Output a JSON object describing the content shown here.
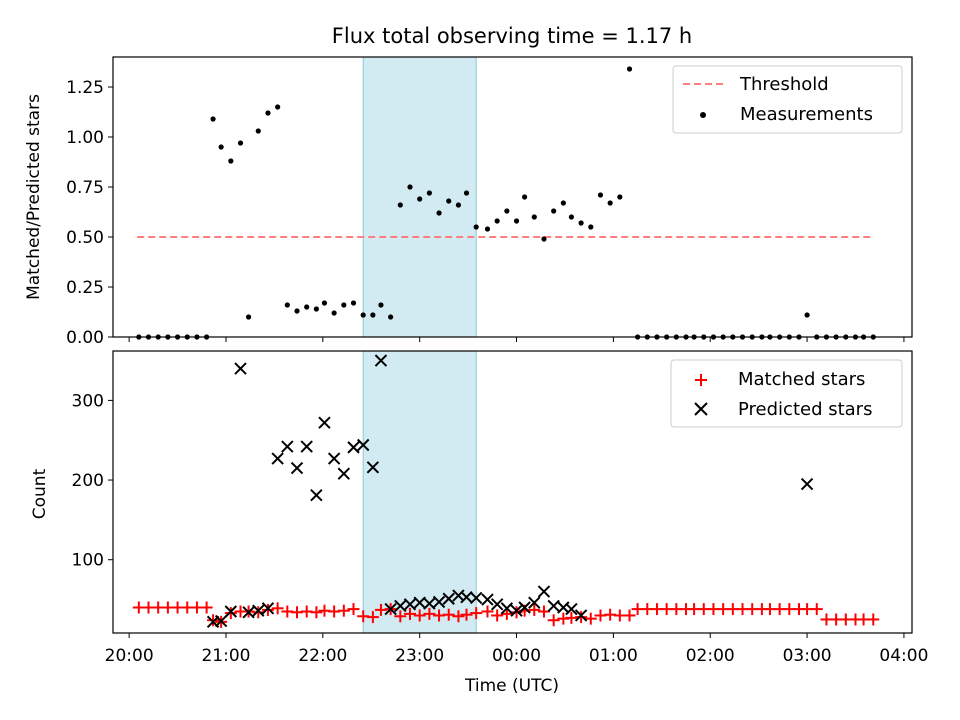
{
  "chart_data": [
    {
      "type": "scatter",
      "title": "Flux total observing time = 1.17 h",
      "xlabel": "",
      "ylabel": "Matched/Predicted stars",
      "xlim": [
        "19:50",
        "04:05"
      ],
      "ylim": [
        0,
        1.4
      ],
      "yticks": [
        "0.00",
        "0.25",
        "0.50",
        "0.75",
        "1.00",
        "1.25"
      ],
      "grid": false,
      "legend_position": "top-right",
      "shaded_interval": [
        "22:25",
        "23:35"
      ],
      "shade_color": "#add8e6",
      "series": [
        {
          "name": "Threshold",
          "style": "dashed-line",
          "color": "#ff7f7f",
          "x": [
            "20:05",
            "03:40"
          ],
          "y": [
            0.5,
            0.5
          ]
        },
        {
          "name": "Measurements",
          "style": "dot",
          "color": "#000000",
          "x": [
            "20:06",
            "20:12",
            "20:18",
            "20:24",
            "20:30",
            "20:36",
            "20:42",
            "20:48",
            "20:52",
            "20:57",
            "21:03",
            "21:09",
            "21:14",
            "21:20",
            "21:26",
            "21:32",
            "21:38",
            "21:44",
            "21:50",
            "21:56",
            "22:01",
            "22:07",
            "22:13",
            "22:19",
            "22:25",
            "22:31",
            "22:36",
            "22:42",
            "22:48",
            "22:54",
            "23:00",
            "23:06",
            "23:12",
            "23:18",
            "23:24",
            "23:29",
            "23:35",
            "23:42",
            "23:48",
            "23:54",
            "00:00",
            "00:05",
            "00:11",
            "00:17",
            "00:23",
            "00:29",
            "00:34",
            "00:40",
            "00:46",
            "00:52",
            "00:58",
            "01:04",
            "01:10",
            "01:15",
            "01:21",
            "01:27",
            "01:33",
            "01:39",
            "01:45",
            "01:50",
            "01:56",
            "02:02",
            "02:08",
            "02:14",
            "02:20",
            "02:26",
            "02:32",
            "02:37",
            "02:43",
            "02:49",
            "02:55",
            "03:00",
            "03:06",
            "03:12",
            "03:18",
            "03:24",
            "03:30",
            "03:35",
            "03:41"
          ],
          "y": [
            0,
            0,
            0,
            0,
            0,
            0,
            0,
            0,
            1.09,
            0.95,
            0.88,
            0.97,
            0.1,
            1.03,
            1.12,
            1.15,
            0.16,
            0.13,
            0.15,
            0.14,
            0.17,
            0.12,
            0.16,
            0.17,
            0.11,
            0.11,
            0.16,
            0.1,
            0.66,
            0.75,
            0.69,
            0.72,
            0.62,
            0.68,
            0.66,
            0.72,
            0.55,
            0.54,
            0.58,
            0.63,
            0.58,
            0.7,
            0.6,
            0.49,
            0.63,
            0.67,
            0.6,
            0.57,
            0.55,
            0.71,
            0.67,
            0.7,
            1.34,
            0,
            0,
            0,
            0,
            0,
            0,
            0,
            0,
            0,
            0,
            0,
            0,
            0,
            0,
            0,
            0,
            0,
            0,
            0.11,
            0,
            0,
            0,
            0,
            0,
            0,
            0
          ]
        }
      ]
    },
    {
      "type": "scatter",
      "title": "",
      "xlabel": "Time (UTC)",
      "ylabel": "Count",
      "xlim": [
        "19:50",
        "04:05"
      ],
      "xticks": [
        "20:00",
        "21:00",
        "22:00",
        "23:00",
        "00:00",
        "01:00",
        "02:00",
        "03:00",
        "04:00"
      ],
      "ylim": [
        8,
        362
      ],
      "yticks": [
        "100",
        "200",
        "300"
      ],
      "grid": false,
      "legend_position": "top-right",
      "shaded_interval": [
        "22:25",
        "23:35"
      ],
      "shade_color": "#add8e6",
      "series": [
        {
          "name": "Matched stars",
          "marker": "+",
          "color": "#ff0000",
          "x": [
            "20:06",
            "20:12",
            "20:18",
            "20:24",
            "20:30",
            "20:36",
            "20:42",
            "20:48",
            "20:52",
            "20:57",
            "21:03",
            "21:09",
            "21:14",
            "21:20",
            "21:26",
            "21:32",
            "21:38",
            "21:44",
            "21:50",
            "21:56",
            "22:01",
            "22:07",
            "22:13",
            "22:19",
            "22:25",
            "22:31",
            "22:36",
            "22:42",
            "22:48",
            "22:54",
            "23:00",
            "23:06",
            "23:12",
            "23:18",
            "23:24",
            "23:29",
            "23:35",
            "23:42",
            "23:48",
            "23:54",
            "00:00",
            "00:05",
            "00:11",
            "00:17",
            "00:23",
            "00:29",
            "00:34",
            "00:40",
            "00:46",
            "00:52",
            "00:58",
            "01:04",
            "01:10",
            "01:15",
            "01:21",
            "01:27",
            "01:33",
            "01:39",
            "01:45",
            "01:50",
            "01:56",
            "02:02",
            "02:08",
            "02:14",
            "02:20",
            "02:26",
            "02:32",
            "02:37",
            "02:43",
            "02:49",
            "02:55",
            "03:00",
            "03:06",
            "03:12",
            "03:18",
            "03:24",
            "03:30",
            "03:35",
            "03:41"
          ],
          "y": [
            40,
            40,
            40,
            40,
            40,
            40,
            40,
            40,
            24,
            22,
            33,
            35,
            35,
            34,
            37,
            39,
            35,
            34,
            35,
            34,
            36,
            35,
            36,
            38,
            29,
            28,
            37,
            38,
            29,
            32,
            30,
            32,
            30,
            31,
            29,
            31,
            33,
            35,
            30,
            32,
            34,
            36,
            37,
            35,
            24,
            26,
            27,
            28,
            26,
            30,
            31,
            30,
            30,
            38,
            38,
            38,
            38,
            38,
            38,
            38,
            38,
            38,
            38,
            38,
            38,
            38,
            38,
            38,
            38,
            38,
            38,
            38,
            38,
            25,
            25,
            25,
            25,
            25,
            25
          ]
        },
        {
          "name": "Predicted stars",
          "marker": "x",
          "color": "#000000",
          "x": [
            "20:52",
            "20:57",
            "21:03",
            "21:09",
            "21:14",
            "21:20",
            "21:26",
            "21:32",
            "21:38",
            "21:44",
            "21:50",
            "21:56",
            "22:01",
            "22:07",
            "22:13",
            "22:19",
            "22:25",
            "22:31",
            "22:36",
            "22:42",
            "22:48",
            "22:54",
            "23:00",
            "23:06",
            "23:12",
            "23:18",
            "23:24",
            "23:29",
            "23:35",
            "23:42",
            "23:48",
            "23:54",
            "00:00",
            "00:05",
            "00:11",
            "00:17",
            "00:23",
            "00:29",
            "00:34",
            "00:40",
            "03:00"
          ],
          "y": [
            22,
            23,
            35,
            340,
            34,
            36,
            39,
            227,
            242,
            215,
            242,
            181,
            272,
            227,
            208,
            241,
            244,
            216,
            350,
            38,
            42,
            44,
            46,
            45,
            47,
            51,
            55,
            53,
            52,
            50,
            44,
            39,
            36,
            40,
            46,
            60,
            42,
            40,
            38,
            30,
            195
          ]
        }
      ]
    }
  ]
}
